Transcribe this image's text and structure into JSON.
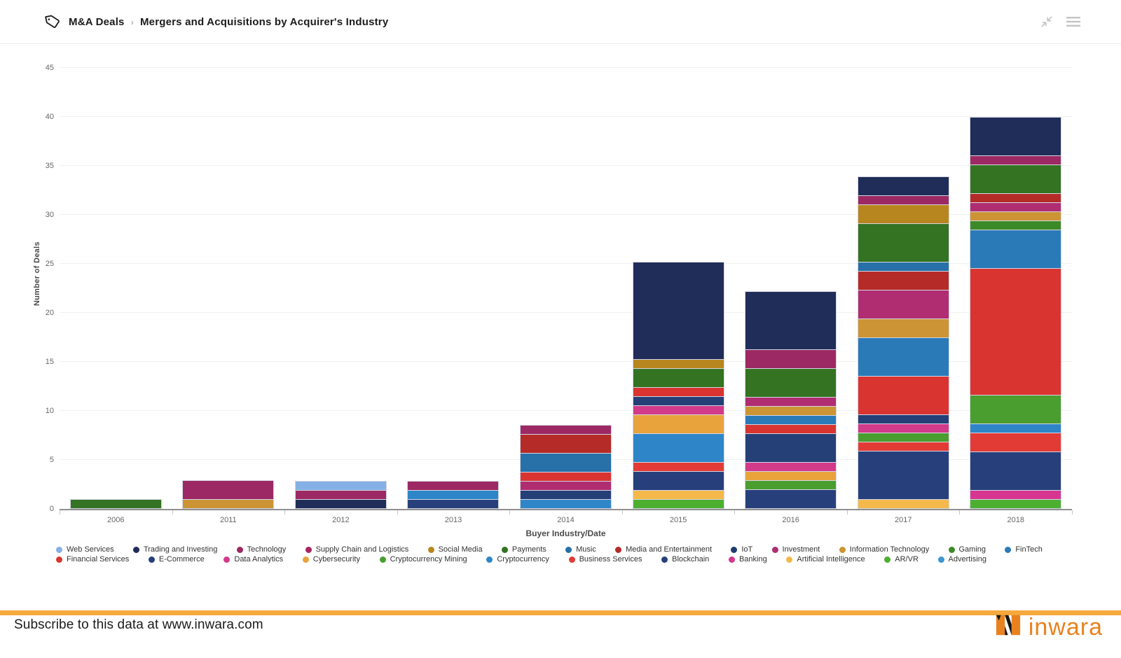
{
  "header": {
    "breadcrumb": "M&A Deals",
    "separator": "›",
    "title": "Mergers and Acquisitions by Acquirer's Industry",
    "icons": [
      "tag-icon",
      "collapse-icon",
      "menu-icon"
    ]
  },
  "chart_data": {
    "type": "bar",
    "stacked": true,
    "xlabel": "Buyer Industry/Date",
    "ylabel": "Number of Deals",
    "ylim": [
      0,
      45
    ],
    "yticks": [
      0,
      5,
      10,
      15,
      20,
      25,
      30,
      35,
      40,
      45
    ],
    "grid": true,
    "legend_position": "bottom",
    "categories": [
      "2006",
      "2011",
      "2012",
      "2013",
      "2014",
      "2015",
      "2016",
      "2017",
      "2018"
    ],
    "totals": [
      1,
      3,
      3,
      3,
      9,
      26,
      23,
      35,
      41
    ],
    "industries": {
      "Web Services": "#85b0e5",
      "Trading and Investing": "#1f2d58",
      "Technology": "#9c2963",
      "Supply Chain and Logistics": "#a62560",
      "Social Media": "#b8861e",
      "Payments": "#337321",
      "Music": "#2770a8",
      "Media and Entertainment": "#b52b27",
      "IoT": "#1f3b70",
      "Investment": "#b02d72",
      "Information Technology": "#cc9434",
      "Gaming": "#3c8a27",
      "FinTech": "#2b7ab8",
      "Financial Services": "#d93430",
      "E-Commerce": "#253f77",
      "Data Analytics": "#d23a8a",
      "Cybersecurity": "#e8a33d",
      "Cryptocurrency Mining": "#4a9e2f",
      "Cryptocurrency": "#2e86c8",
      "Business Services": "#e23b36",
      "Blockchain": "#27407c",
      "Banking": "#d6368f",
      "Artificial Intelligence": "#f4b94a",
      "AR/VR": "#4caf30",
      "Advertising": "#3d97d3"
    },
    "legend_rows": [
      [
        "Web Services",
        "Trading and Investing",
        "Technology",
        "Supply Chain and Logistics",
        "Social Media",
        "Payments",
        "Music",
        "Media and Entertainment",
        "IoT",
        "Investment",
        "Information Technology",
        "Gaming",
        "FinTech"
      ],
      [
        "Financial Services",
        "E-Commerce",
        "Data Analytics",
        "Cybersecurity",
        "Cryptocurrency Mining",
        "Cryptocurrency",
        "Business Services",
        "Blockchain",
        "Banking",
        "Artificial Intelligence",
        "AR/VR",
        "Advertising"
      ]
    ],
    "bars": {
      "2006": [
        {
          "industry": "Payments",
          "value": 1
        }
      ],
      "2011": [
        {
          "industry": "Information Technology",
          "value": 1
        },
        {
          "industry": "Technology",
          "value": 2
        }
      ],
      "2012": [
        {
          "industry": "Trading and Investing",
          "value": 1
        },
        {
          "industry": "Technology",
          "value": 1
        },
        {
          "industry": "Web Services",
          "value": 1
        }
      ],
      "2013": [
        {
          "industry": "Blockchain",
          "value": 1
        },
        {
          "industry": "Cryptocurrency",
          "value": 1
        },
        {
          "industry": "Technology",
          "value": 1
        }
      ],
      "2014": [
        {
          "industry": "Cryptocurrency",
          "value": 1
        },
        {
          "industry": "E-Commerce",
          "value": 1
        },
        {
          "industry": "Investment",
          "value": 1
        },
        {
          "industry": "Financial Services",
          "value": 1
        },
        {
          "industry": "Music",
          "value": 2
        },
        {
          "industry": "Media and Entertainment",
          "value": 2
        },
        {
          "industry": "Technology",
          "value": 1
        }
      ],
      "2015": [
        {
          "industry": "AR/VR",
          "value": 1
        },
        {
          "industry": "Artificial Intelligence",
          "value": 1
        },
        {
          "industry": "Blockchain",
          "value": 2
        },
        {
          "industry": "Business Services",
          "value": 1
        },
        {
          "industry": "Cryptocurrency",
          "value": 3
        },
        {
          "industry": "Cybersecurity",
          "value": 2
        },
        {
          "industry": "Data Analytics",
          "value": 1
        },
        {
          "industry": "E-Commerce",
          "value": 1
        },
        {
          "industry": "Financial Services",
          "value": 1
        },
        {
          "industry": "Payments",
          "value": 2
        },
        {
          "industry": "Social Media",
          "value": 1
        },
        {
          "industry": "Trading and Investing",
          "value": 10
        }
      ],
      "2016": [
        {
          "industry": "Blockchain",
          "value": 2
        },
        {
          "industry": "Cryptocurrency Mining",
          "value": 1
        },
        {
          "industry": "Cybersecurity",
          "value": 1
        },
        {
          "industry": "Data Analytics",
          "value": 1
        },
        {
          "industry": "E-Commerce",
          "value": 3
        },
        {
          "industry": "Financial Services",
          "value": 1
        },
        {
          "industry": "FinTech",
          "value": 1
        },
        {
          "industry": "Information Technology",
          "value": 1
        },
        {
          "industry": "Investment",
          "value": 1
        },
        {
          "industry": "Payments",
          "value": 3
        },
        {
          "industry": "Technology",
          "value": 2
        },
        {
          "industry": "Trading and Investing",
          "value": 6
        }
      ],
      "2017": [
        {
          "industry": "Artificial Intelligence",
          "value": 1
        },
        {
          "industry": "Blockchain",
          "value": 5
        },
        {
          "industry": "Business Services",
          "value": 1
        },
        {
          "industry": "Cryptocurrency Mining",
          "value": 1
        },
        {
          "industry": "Data Analytics",
          "value": 1
        },
        {
          "industry": "E-Commerce",
          "value": 1
        },
        {
          "industry": "Financial Services",
          "value": 4
        },
        {
          "industry": "FinTech",
          "value": 4
        },
        {
          "industry": "Information Technology",
          "value": 2
        },
        {
          "industry": "Investment",
          "value": 3
        },
        {
          "industry": "Media and Entertainment",
          "value": 2
        },
        {
          "industry": "Music",
          "value": 1
        },
        {
          "industry": "Payments",
          "value": 4
        },
        {
          "industry": "Social Media",
          "value": 2
        },
        {
          "industry": "Technology",
          "value": 1
        },
        {
          "industry": "Trading and Investing",
          "value": 2
        }
      ],
      "2018": [
        {
          "industry": "AR/VR",
          "value": 1
        },
        {
          "industry": "Banking",
          "value": 1
        },
        {
          "industry": "Blockchain",
          "value": 4
        },
        {
          "industry": "Business Services",
          "value": 2
        },
        {
          "industry": "Cryptocurrency",
          "value": 1
        },
        {
          "industry": "Cryptocurrency Mining",
          "value": 3
        },
        {
          "industry": "Financial Services",
          "value": 13
        },
        {
          "industry": "FinTech",
          "value": 4
        },
        {
          "industry": "Gaming",
          "value": 1
        },
        {
          "industry": "Information Technology",
          "value": 1
        },
        {
          "industry": "Investment",
          "value": 1
        },
        {
          "industry": "Media and Entertainment",
          "value": 1
        },
        {
          "industry": "Payments",
          "value": 3
        },
        {
          "industry": "Technology",
          "value": 1
        },
        {
          "industry": "Trading and Investing",
          "value": 4
        }
      ]
    }
  },
  "footer": {
    "subscribe_text": "Subscribe to this data at www.inwara.com",
    "brand": "inwara",
    "accent_color": "#f5a93c",
    "brand_color": "#e8821e"
  }
}
